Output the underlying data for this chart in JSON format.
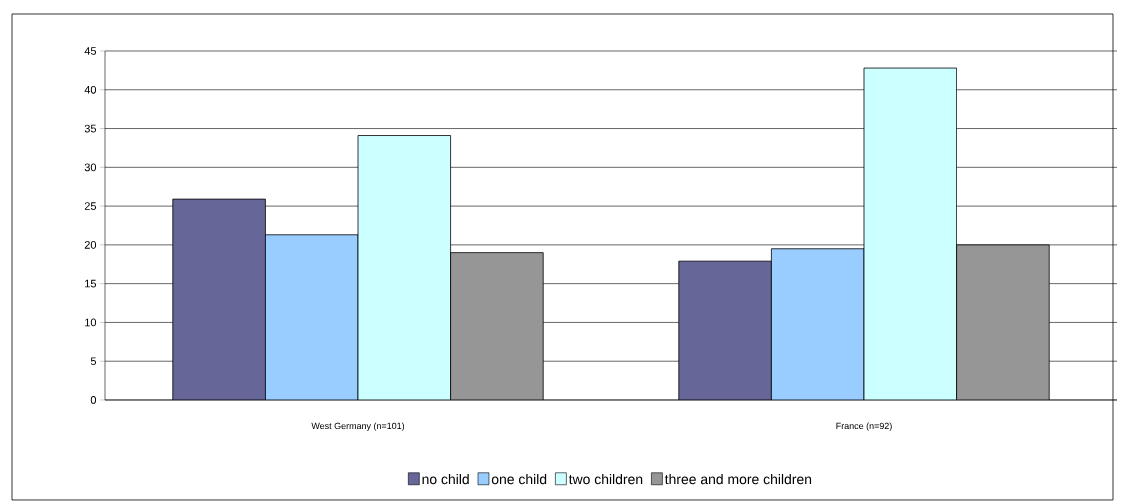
{
  "chart_data": {
    "type": "bar",
    "categories": [
      "West Germany (n=101)",
      "France (n=92)"
    ],
    "series": [
      {
        "name": "no child",
        "color": "#666699",
        "values": [
          25.9,
          17.9
        ]
      },
      {
        "name": "one child",
        "color": "#99ccff",
        "values": [
          21.3,
          19.5
        ]
      },
      {
        "name": "two children",
        "color": "#ccffff",
        "values": [
          34.1,
          42.8
        ]
      },
      {
        "name": "three and more children",
        "color": "#969696",
        "values": [
          19.0,
          20.0
        ]
      }
    ],
    "ylim": [
      0,
      45
    ],
    "yticks": [
      0,
      5,
      10,
      15,
      20,
      25,
      30,
      35,
      40,
      45
    ],
    "grid": "y",
    "legend": "bottom"
  }
}
